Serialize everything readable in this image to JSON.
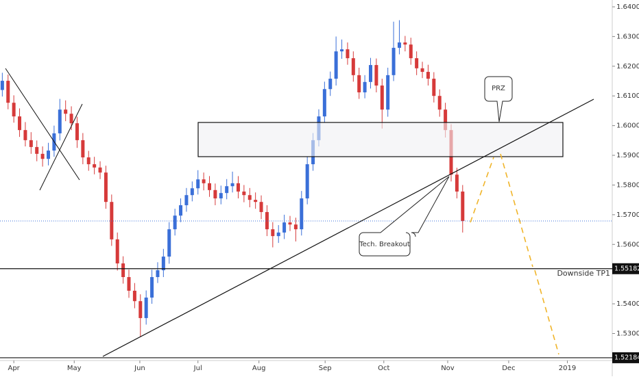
{
  "chart_data": {
    "type": "candlestick",
    "candles": [
      [
        1.612,
        1.6178,
        1.6098,
        1.6151
      ],
      [
        1.6151,
        1.6172,
        1.6055,
        1.6077
      ],
      [
        1.6077,
        1.6102,
        1.601,
        1.6031
      ],
      [
        1.6031,
        1.6058,
        1.5962,
        1.5985
      ],
      [
        1.5985,
        1.6012,
        1.593,
        1.5951
      ],
      [
        1.5951,
        1.5978,
        1.5905,
        1.5928
      ],
      [
        1.5928,
        1.595,
        1.588,
        1.5905
      ],
      [
        1.5905,
        1.593,
        1.5862,
        1.5888
      ],
      [
        1.5888,
        1.5942,
        1.5866,
        1.5916
      ],
      [
        1.5916,
        1.6,
        1.5895,
        1.5974
      ],
      [
        1.5974,
        1.609,
        1.595,
        1.6054
      ],
      [
        1.6054,
        1.6085,
        1.6015,
        1.604
      ],
      [
        1.604,
        1.6065,
        1.5985,
        1.6008
      ],
      [
        1.6008,
        1.603,
        1.5925,
        1.5951
      ],
      [
        1.5951,
        1.5975,
        1.587,
        1.5893
      ],
      [
        1.5893,
        1.5915,
        1.5848,
        1.587
      ],
      [
        1.587,
        1.5895,
        1.5836,
        1.5859
      ],
      [
        1.5859,
        1.588,
        1.582,
        1.5842
      ],
      [
        1.5842,
        1.5865,
        1.572,
        1.5743
      ],
      [
        1.5743,
        1.5768,
        1.5595,
        1.5617
      ],
      [
        1.5617,
        1.564,
        1.5512,
        1.5536
      ],
      [
        1.5536,
        1.556,
        1.5468,
        1.549
      ],
      [
        1.549,
        1.5515,
        1.542,
        1.5444
      ],
      [
        1.5444,
        1.547,
        1.5385,
        1.5409
      ],
      [
        1.5409,
        1.5432,
        1.529,
        1.5352
      ],
      [
        1.5352,
        1.5445,
        1.533,
        1.5421
      ],
      [
        1.5421,
        1.5515,
        1.54,
        1.549
      ],
      [
        1.549,
        1.554,
        1.547,
        1.5513
      ],
      [
        1.5513,
        1.5585,
        1.549,
        1.5559
      ],
      [
        1.5559,
        1.5675,
        1.5535,
        1.5651
      ],
      [
        1.5651,
        1.572,
        1.563,
        1.5697
      ],
      [
        1.5697,
        1.5755,
        1.5675,
        1.5732
      ],
      [
        1.5732,
        1.579,
        1.571,
        1.5766
      ],
      [
        1.5766,
        1.5812,
        1.5745,
        1.5789
      ],
      [
        1.5789,
        1.585,
        1.5768,
        1.5819
      ],
      [
        1.5819,
        1.5842,
        1.5782,
        1.5806
      ],
      [
        1.5806,
        1.583,
        1.576,
        1.5783
      ],
      [
        1.5783,
        1.5805,
        1.5732,
        1.5755
      ],
      [
        1.5755,
        1.5798,
        1.5735,
        1.5773
      ],
      [
        1.5773,
        1.582,
        1.5752,
        1.5796
      ],
      [
        1.5796,
        1.5845,
        1.5775,
        1.5806
      ],
      [
        1.5806,
        1.583,
        1.5755,
        1.5778
      ],
      [
        1.5778,
        1.58,
        1.5742,
        1.5766
      ],
      [
        1.5766,
        1.579,
        1.5725,
        1.575
      ],
      [
        1.575,
        1.5775,
        1.572,
        1.5743
      ],
      [
        1.5743,
        1.5765,
        1.5685,
        1.5709
      ],
      [
        1.5709,
        1.5732,
        1.5628,
        1.5651
      ],
      [
        1.5651,
        1.5675,
        1.559,
        1.5628
      ],
      [
        1.5628,
        1.5665,
        1.5605,
        1.564
      ],
      [
        1.564,
        1.57,
        1.5618,
        1.5674
      ],
      [
        1.5674,
        1.5696,
        1.5645,
        1.5667
      ],
      [
        1.5667,
        1.569,
        1.561,
        1.5651
      ],
      [
        1.5651,
        1.578,
        1.563,
        1.5755
      ],
      [
        1.5755,
        1.5895,
        1.5735,
        1.587
      ],
      [
        1.587,
        1.5975,
        1.5848,
        1.5951
      ],
      [
        1.5951,
        1.6055,
        1.593,
        1.6031
      ],
      [
        1.6031,
        1.6148,
        1.601,
        1.6123
      ],
      [
        1.6123,
        1.6182,
        1.61,
        1.6158
      ],
      [
        1.6158,
        1.63,
        1.6135,
        1.625
      ],
      [
        1.625,
        1.629,
        1.6225,
        1.6257
      ],
      [
        1.6257,
        1.628,
        1.6205,
        1.6227
      ],
      [
        1.6227,
        1.625,
        1.6148,
        1.617
      ],
      [
        1.617,
        1.6195,
        1.609,
        1.6112
      ],
      [
        1.6112,
        1.617,
        1.6092,
        1.6147
      ],
      [
        1.6147,
        1.6228,
        1.6125,
        1.6204
      ],
      [
        1.6204,
        1.6226,
        1.6112,
        1.6135
      ],
      [
        1.6135,
        1.6158,
        1.599,
        1.6054
      ],
      [
        1.6054,
        1.6195,
        1.603,
        1.617
      ],
      [
        1.617,
        1.635,
        1.615,
        1.6262
      ],
      [
        1.6262,
        1.6355,
        1.624,
        1.628
      ],
      [
        1.628,
        1.6302,
        1.625,
        1.6273
      ],
      [
        1.6273,
        1.6296,
        1.6205,
        1.6227
      ],
      [
        1.6227,
        1.625,
        1.617,
        1.6193
      ],
      [
        1.6193,
        1.6215,
        1.616,
        1.6181
      ],
      [
        1.6181,
        1.6205,
        1.6135,
        1.6158
      ],
      [
        1.6158,
        1.618,
        1.6078,
        1.61
      ],
      [
        1.61,
        1.6122,
        1.603,
        1.6054
      ],
      [
        1.6054,
        1.6077,
        1.596,
        1.5985
      ],
      [
        1.5985,
        1.6005,
        1.5812,
        1.5835
      ],
      [
        1.5835,
        1.5858,
        1.5755,
        1.5778
      ],
      [
        1.5778,
        1.58,
        1.564,
        1.5679
      ]
    ],
    "up_color": "#3a6fd8",
    "down_color": "#d63a3a",
    "xlim": [
      -0.4,
      106
    ],
    "xticks": [
      {
        "value": 2.0,
        "label": "Apr"
      },
      {
        "value": 12.5,
        "label": "May"
      },
      {
        "value": 23.9,
        "label": "Jun"
      },
      {
        "value": 34.0,
        "label": "Jul"
      },
      {
        "value": 44.6,
        "label": "Aug"
      },
      {
        "value": 56.1,
        "label": "Sep"
      },
      {
        "value": 66.3,
        "label": "Oct"
      },
      {
        "value": 77.4,
        "label": "Nov"
      },
      {
        "value": 88.0,
        "label": "Dec"
      },
      {
        "value": 98.2,
        "label": "2019"
      }
    ],
    "ylim": [
      1.5209,
      1.6423
    ],
    "yticks": [
      {
        "value": 1.53,
        "label": "1.53000"
      },
      {
        "value": 1.54,
        "label": "1.54000"
      },
      {
        "value": 1.56,
        "label": "1.56000"
      },
      {
        "value": 1.57,
        "label": "1.57000"
      },
      {
        "value": 1.58,
        "label": "1.58000"
      },
      {
        "value": 1.59,
        "label": "1.59000"
      },
      {
        "value": 1.6,
        "label": "1.60000"
      },
      {
        "value": 1.61,
        "label": "1.61000"
      },
      {
        "value": 1.62,
        "label": "1.62000"
      },
      {
        "value": 1.63,
        "label": "1.63000"
      },
      {
        "value": 1.64,
        "label": "1.64000"
      }
    ],
    "levels": [
      1.55182,
      1.52184
    ],
    "annotations": {
      "prz": "PRZ",
      "breakout": "Tech. Breakout",
      "target": "Downside TP1"
    }
  }
}
